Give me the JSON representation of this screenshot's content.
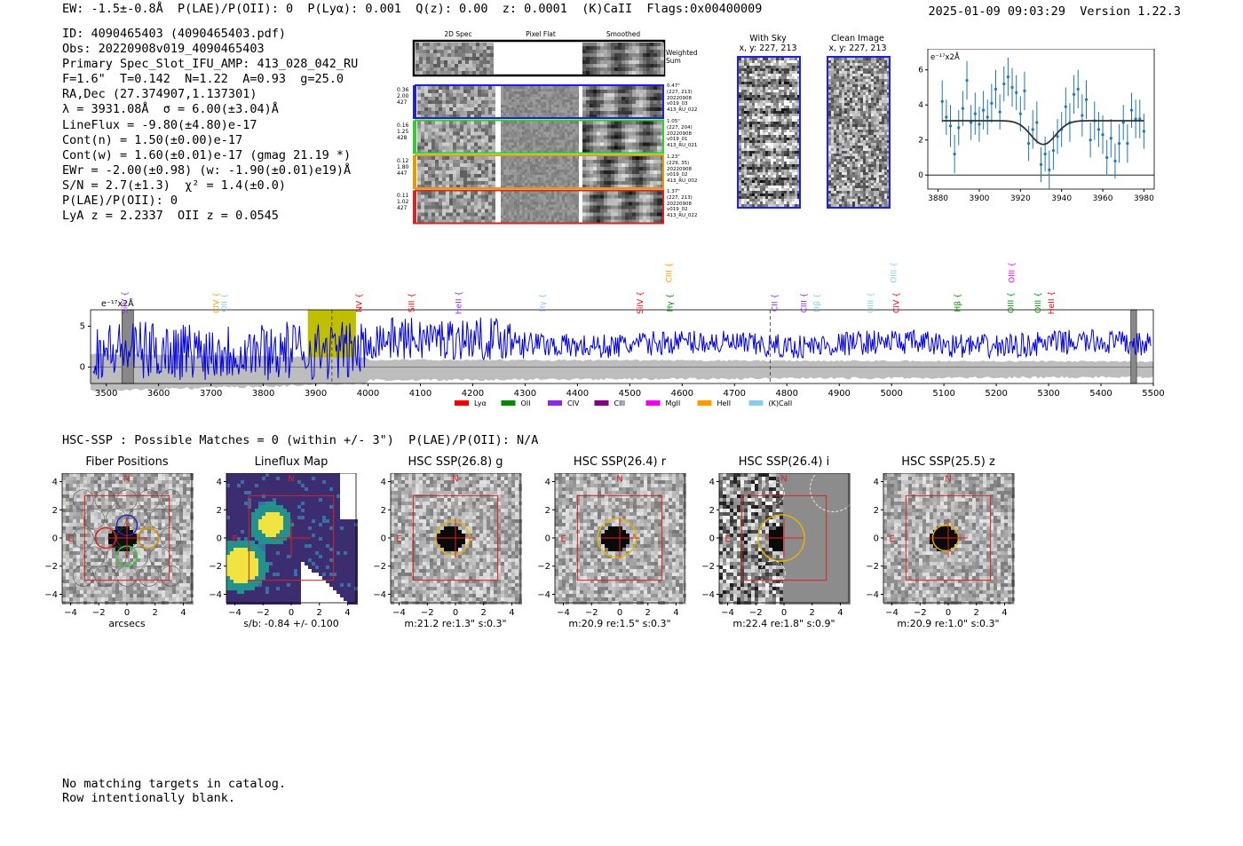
{
  "header": {
    "left": "EW: -1.5±-0.8Å  P(LAE)/P(OII): 0  P(Lyα): 0.001  Q(z): 0.00  z: 0.0001  (K)CaII  Flags:0x00400009",
    "right": "2025-01-09 09:03:29  Version 1.22.3"
  },
  "info": [
    "ID: 4090465403 (4090465403.pdf)",
    "Obs: 20220908v019_4090465403",
    "Primary Spec_Slot_IFU_AMP: 413_028_042_RU",
    "F=1.6\"  T=0.142  N=1.22  A=0.93  g=25.0",
    "RA,Dec (27.374907,1.137301)",
    "λ = 3931.08Å  σ = 6.00(±3.04)Å",
    "LineFlux = -9.80(±4.80)e-17",
    "Cont(n) = 1.50(±0.00)e-17",
    "Cont(w) = 1.60(±0.01)e-17 (gmag 21.19 *)",
    "EWr = -2.00(±0.98) (w: -1.90(±0.01)e19)Å",
    "S/N = 2.7(±1.3)  χ² = 1.4(±0.0)",
    "P(LAE)/P(OII): 0",
    "LyA z = 2.2337  OII z = 0.0545"
  ],
  "cutouts": {
    "col_labels": [
      "2D Spec",
      "Pixel Flat",
      "Smoothed"
    ],
    "weighted_label": "Weighted Sum",
    "rows": [
      {
        "left": "0.36\n2.00\n427",
        "right": "0.47\"\n(227, 213)\n20220908\nv019_03\n413_RU_022",
        "color": "#2222cc"
      },
      {
        "left": "0.16\n1.25\n428",
        "right": "1.05\"\n(227, 204)\n20220908\nv019_01\n413_RU_021",
        "color": "#33cc33"
      },
      {
        "left": "0.12\n1.80\n447",
        "right": "1.23\"\n(229, 35)\n20220908\nv019_02\n413_RU_002",
        "color": "#e69a00"
      },
      {
        "left": "0.11\n1.02\n427",
        "right": "1.37\"\n(227, 213)\n20220908\nv019_02\n413_RU_022",
        "color": "#dd2222"
      }
    ]
  },
  "stamps": {
    "with_sky": "With Sky\nx, y: 227, 213",
    "clean": "Clean Image\nx, y: 227, 213"
  },
  "zoom_chart": {
    "type": "line",
    "unit": "e⁻¹⁷x2Å",
    "xlim": [
      3875,
      3985
    ],
    "ylim": [
      -0.8,
      7.2
    ],
    "xticks": [
      3880,
      3900,
      3920,
      3940,
      3960,
      3980
    ],
    "yticks": [
      0,
      2,
      4,
      6
    ],
    "x": [
      3882,
      3884,
      3886,
      3888,
      3890,
      3892,
      3894,
      3896,
      3898,
      3900,
      3902,
      3904,
      3906,
      3908,
      3910,
      3912,
      3914,
      3916,
      3918,
      3920,
      3922,
      3924,
      3926,
      3928,
      3930,
      3932,
      3934,
      3936,
      3938,
      3940,
      3942,
      3944,
      3946,
      3948,
      3950,
      3952,
      3954,
      3956,
      3958,
      3960,
      3962,
      3964,
      3966,
      3968,
      3970,
      3972,
      3974,
      3976,
      3978,
      3980
    ],
    "values": [
      4.2,
      3.3,
      2.8,
      1.2,
      2.7,
      3.8,
      5.4,
      3.0,
      3.5,
      2.9,
      3.7,
      3.3,
      4.1,
      4.9,
      3.6,
      5.2,
      5.6,
      5.0,
      4.7,
      3.5,
      4.8,
      1.8,
      2.6,
      3.0,
      0.6,
      1.2,
      0.3,
      1.4,
      2.2,
      2.6,
      3.9,
      3.0,
      4.6,
      4.9,
      3.4,
      4.3,
      2.0,
      3.1,
      2.6,
      2.3,
      1.0,
      2.1,
      0.8,
      1.8,
      3.0,
      1.8,
      3.7,
      3.2,
      3.2,
      2.5
    ],
    "errors": [
      1.2,
      1.0,
      1.2,
      1.1,
      1.0,
      1.0,
      1.1,
      1.0,
      1.2,
      1.0,
      1.1,
      1.0,
      1.1,
      1.1,
      1.0,
      1.0,
      1.1,
      1.1,
      1.0,
      1.0,
      1.1,
      1.0,
      1.1,
      1.2,
      1.0,
      1.0,
      1.1,
      1.1,
      1.0,
      1.0,
      1.1,
      1.1,
      1.1,
      1.1,
      1.2,
      1.1,
      1.0,
      1.1,
      1.0,
      1.1,
      1.0,
      1.1,
      1.0,
      1.1,
      1.0,
      1.1,
      1.0,
      1.1,
      1.1,
      1.0
    ],
    "model": {
      "continuum": 3.1,
      "center": 3931.08,
      "sigma": 6.0,
      "depth": 1.35
    }
  },
  "spectrum": {
    "type": "line",
    "unit": "e⁻¹⁷x2Å",
    "xlim": [
      3470,
      5500
    ],
    "ylim": [
      -2,
      7
    ],
    "xticks": [
      3500,
      3600,
      3700,
      3800,
      3900,
      4000,
      4100,
      4200,
      4300,
      4400,
      4500,
      4600,
      4700,
      4800,
      4900,
      5000,
      5100,
      5200,
      5300,
      5400,
      5500
    ],
    "yticks": [
      0,
      5
    ],
    "highlight": [
      3885,
      3977
    ],
    "dashed_lines": [
      3931,
      4768
    ],
    "masked": [
      [
        3530,
        3552
      ],
      [
        5457,
        5468
      ]
    ],
    "lines": [
      {
        "label": "SiIV",
        "x": 3540,
        "color": "#8a2be2",
        "level": 1
      },
      {
        "label": "CIV",
        "x": 3715,
        "color": "#ff9900",
        "level": 1
      },
      {
        "label": "OII",
        "x": 3730,
        "color": "#87ceeb",
        "level": 1
      },
      {
        "label": "NV",
        "x": 3988,
        "color": "#ee0000",
        "level": 1
      },
      {
        "label": "SiII",
        "x": 4088,
        "color": "#ee0000",
        "level": 1
      },
      {
        "label": "HeII",
        "x": 4178,
        "color": "#8a2be2",
        "level": 1
      },
      {
        "label": "Hγ",
        "x": 4338,
        "color": "#87ceeb",
        "level": 1
      },
      {
        "label": "SiIV",
        "x": 4525,
        "color": "#ee0000",
        "level": 1
      },
      {
        "label": "CIII",
        "x": 4580,
        "color": "#ff9900",
        "level": 0
      },
      {
        "label": "Hγ",
        "x": 4582,
        "color": "#008800",
        "level": 1
      },
      {
        "label": "CII",
        "x": 4782,
        "color": "#8a2be2",
        "level": 1
      },
      {
        "label": "CIII",
        "x": 4838,
        "color": "#8a2be2",
        "level": 1
      },
      {
        "label": "Hβ",
        "x": 4862,
        "color": "#87ceeb",
        "level": 1
      },
      {
        "label": "OIII",
        "x": 4965,
        "color": "#87ceeb",
        "level": 1
      },
      {
        "label": "OIII",
        "x": 5009,
        "color": "#87ceeb",
        "level": 0
      },
      {
        "label": "CIV",
        "x": 5014,
        "color": "#ee0000",
        "level": 1
      },
      {
        "label": "Hβ",
        "x": 5131,
        "color": "#008800",
        "level": 1
      },
      {
        "label": "OIII",
        "x": 5235,
        "color": "#ee00ee",
        "level": 0
      },
      {
        "label": "OIII",
        "x": 5233,
        "color": "#008800",
        "level": 1
      },
      {
        "label": "OIII",
        "x": 5285,
        "color": "#008800",
        "level": 1
      },
      {
        "label": "HeII",
        "x": 5310,
        "color": "#ee0000",
        "level": 1
      }
    ],
    "legend": [
      {
        "label": "Lyα",
        "color": "#ee0000"
      },
      {
        "label": "OII",
        "color": "#008800"
      },
      {
        "label": "CIV",
        "color": "#8a2be2"
      },
      {
        "label": "CIII",
        "color": "#800080"
      },
      {
        "label": "MgII",
        "color": "#ee00ee"
      },
      {
        "label": "HeII",
        "color": "#ff9900"
      },
      {
        "label": "(K)CaII",
        "color": "#87ceeb"
      }
    ]
  },
  "hsc_line": "HSC-SSP : Possible Matches = 0 (within +/- 3\")  P(LAE)/P(OII): N/A",
  "panels": [
    {
      "title": "Fiber Positions",
      "caption": "arcsecs",
      "kind": "fiber"
    },
    {
      "title": "Lineflux Map",
      "caption": "s/b: -0.84 +/- 0.100",
      "kind": "lineflux"
    },
    {
      "title": "HSC SSP(26.8) g",
      "caption": "m:21.2  re:1.3\"  s:0.3\"",
      "kind": "image",
      "ring": 1.3
    },
    {
      "title": "HSC SSP(26.4) r",
      "caption": "m:20.9  re:1.5\"  s:0.3\"",
      "kind": "image",
      "ring": 1.5
    },
    {
      "title": "HSC SSP(26.4) i",
      "caption": "m:22.4  re:1.8\"  s:0.9\"",
      "kind": "image_i",
      "ring": 1.8
    },
    {
      "title": "HSC SSP(25.5) z",
      "caption": "m:20.9  re:1.0\"  s:0.3\"",
      "kind": "image",
      "ring": 1.0
    }
  ],
  "panel_axes": {
    "ticks": [
      -4,
      -2,
      0,
      2,
      4
    ],
    "north": "N",
    "east": "E"
  },
  "footer": [
    "No matching targets in catalog.",
    "Row intentionally blank."
  ]
}
